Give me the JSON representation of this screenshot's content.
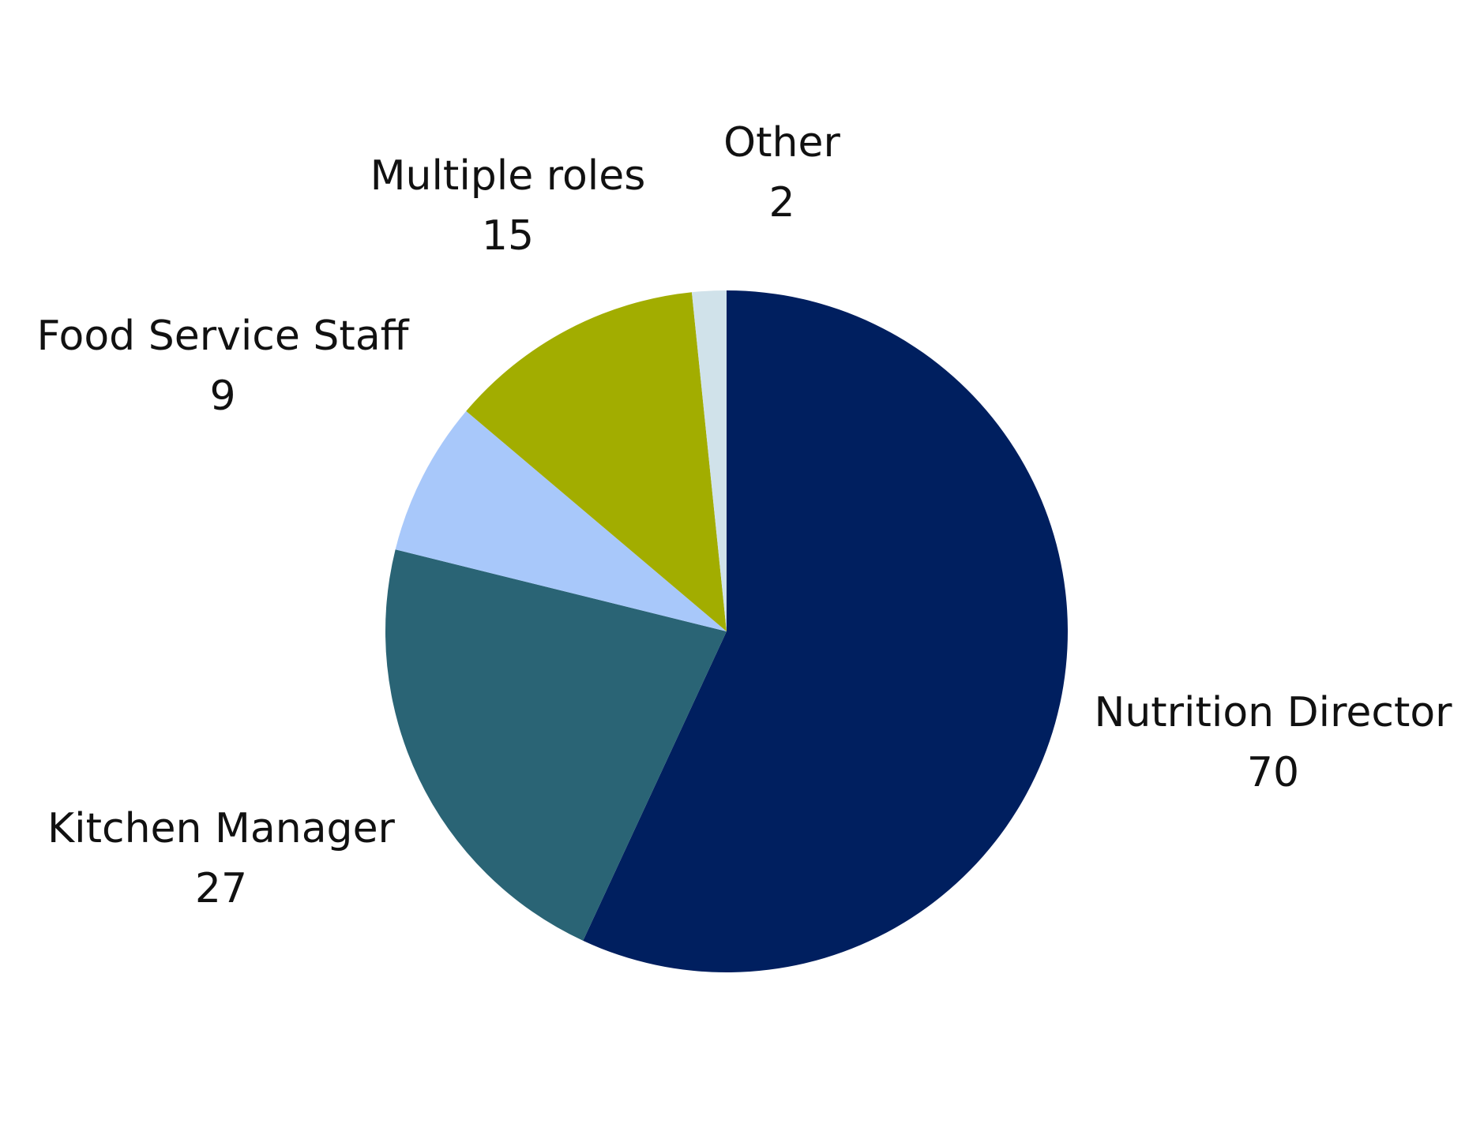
{
  "chart_data": {
    "type": "pie",
    "title": "",
    "start_angle_deg": 0,
    "direction": "clockwise",
    "legend": "none",
    "slices": [
      {
        "label": "Nutrition Director",
        "value": 70,
        "color": "#001f5f"
      },
      {
        "label": "Kitchen Manager",
        "value": 27,
        "color": "#2a6475"
      },
      {
        "label": "Food Service Staff",
        "value": 9,
        "color": "#a8c8fa"
      },
      {
        "label": "Multiple roles",
        "value": 15,
        "color": "#a2ad00"
      },
      {
        "label": "Other",
        "value": 2,
        "color": "#d0e2ea"
      }
    ]
  }
}
